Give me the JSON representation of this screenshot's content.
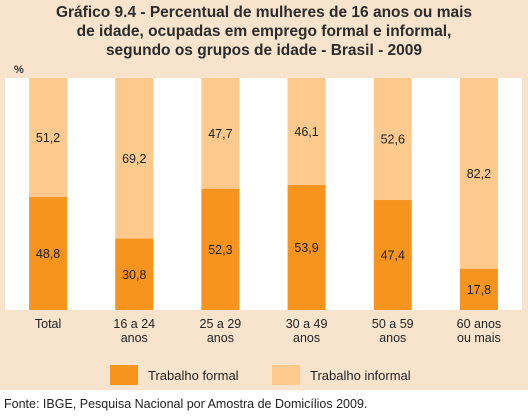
{
  "chart_data": {
    "type": "bar",
    "stacked": true,
    "title_lines": [
      "Gráfico 9.4 - Percentual de mulheres de 16 anos ou mais",
      "de idade, ocupadas em emprego formal e informal,",
      "segundo os grupos de idade - Brasil - 2009"
    ],
    "ylabel": "%",
    "ylim": [
      0,
      100
    ],
    "categories": [
      [
        "Total"
      ],
      [
        "16 a 24",
        "anos"
      ],
      [
        "25 a 29",
        "anos"
      ],
      [
        "30 a 49",
        "anos"
      ],
      [
        "50 a 59",
        "anos"
      ],
      [
        "60 anos",
        "ou mais"
      ]
    ],
    "series": [
      {
        "name": "Trabalho formal",
        "color": "#f7941d",
        "values": [
          48.8,
          30.8,
          52.3,
          53.9,
          47.4,
          17.8
        ],
        "labels": [
          "48,8",
          "30,8",
          "52,3",
          "53,9",
          "47,4",
          "17,8"
        ]
      },
      {
        "name": "Trabalho informal",
        "color": "#fdc98d",
        "values": [
          51.2,
          69.2,
          47.7,
          46.1,
          52.6,
          82.2
        ],
        "labels": [
          "51,2",
          "69,2",
          "47,7",
          "46,1",
          "52,6",
          "82,2"
        ]
      }
    ],
    "legend_position": "bottom"
  },
  "colors": {
    "background": "#f8e4cc",
    "plot_background": "#ffffff"
  },
  "source": "Fonte: IBGE, Pesquisa Nacional por Amostra de Domicílios 2009."
}
